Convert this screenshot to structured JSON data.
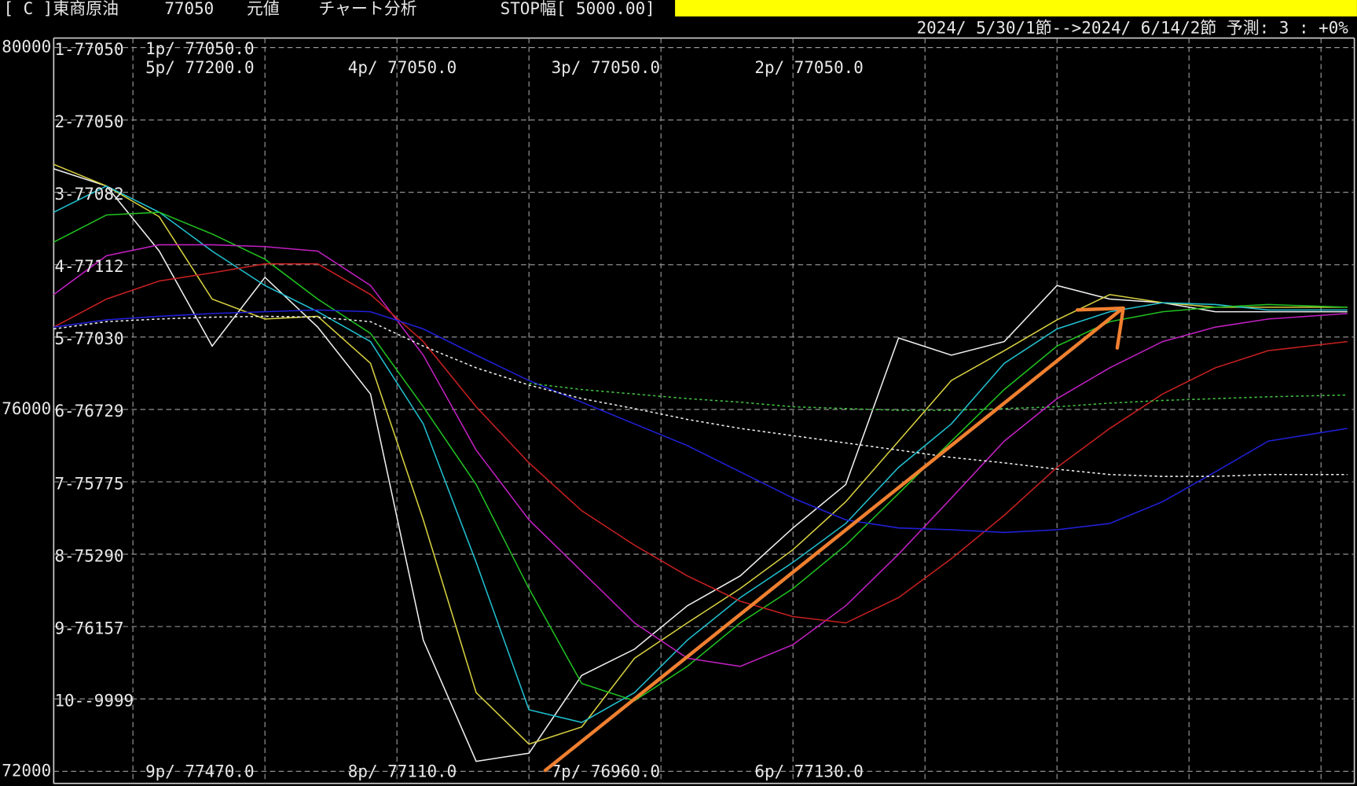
{
  "header": {
    "items": [
      "[ C ]東商原油",
      "77050",
      "元値",
      "チャート分析",
      "STOP幅[ 5000.00]"
    ],
    "period": "2024/ 5/30/1節-->2024/ 6/14/2節 予測: 3 : +0%"
  },
  "chart_data": {
    "type": "line",
    "x": [
      0,
      2,
      4,
      6,
      8,
      10,
      12,
      14,
      16,
      18,
      20,
      22,
      24,
      26,
      28,
      30,
      32,
      34,
      36,
      38,
      40,
      42,
      44,
      46,
      49
    ],
    "xlim": [
      0,
      49
    ],
    "xgrid": [
      3,
      8,
      13,
      18,
      23,
      28,
      33,
      38,
      43,
      48
    ],
    "ylim": [
      72000,
      80000
    ],
    "yticks": [
      80000,
      76000,
      72000
    ],
    "ygrid": [
      80000,
      79200,
      78400,
      77600,
      76800,
      76000,
      75200,
      74400,
      73600,
      72800,
      72000
    ],
    "grid": true,
    "series": [
      {
        "color": "#f0f0f0",
        "dash": false,
        "values": [
          78660,
          78470,
          77750,
          76700,
          77460,
          76910,
          76170,
          73450,
          72110,
          72200,
          73060,
          73350,
          73830,
          74160,
          74690,
          75170,
          76790,
          76600,
          76750,
          77370,
          77220,
          77180,
          77080,
          77080,
          77080
        ]
      },
      {
        "color": "#d8d040",
        "dash": false,
        "values": [
          78710,
          78470,
          78130,
          77220,
          77000,
          77030,
          76510,
          74780,
          72870,
          72300,
          72490,
          73250,
          73640,
          74020,
          74450,
          74980,
          75650,
          76320,
          76650,
          76990,
          77270,
          77180,
          77130,
          77130,
          77130
        ]
      },
      {
        "color": "#20c0d0",
        "dash": false,
        "values": [
          78180,
          78470,
          78180,
          77750,
          77370,
          77080,
          76750,
          75840,
          74310,
          72680,
          72540,
          72870,
          73450,
          73920,
          74310,
          74740,
          75360,
          75840,
          76510,
          76890,
          77080,
          77180,
          77160,
          77100,
          77100
        ]
      },
      {
        "color": "#20c020",
        "dash": false,
        "values": [
          77850,
          78150,
          78180,
          77940,
          77660,
          77220,
          76840,
          76030,
          75170,
          74020,
          72970,
          72780,
          73160,
          73640,
          74020,
          74500,
          75070,
          75650,
          76220,
          76700,
          76970,
          77080,
          77130,
          77160,
          77130
        ]
      },
      {
        "color": "#c020c0",
        "dash": false,
        "values": [
          77270,
          77700,
          77820,
          77820,
          77800,
          77750,
          77370,
          76600,
          75550,
          74780,
          74210,
          73640,
          73250,
          73160,
          73400,
          73830,
          74400,
          75020,
          75650,
          76120,
          76460,
          76750,
          76910,
          77000,
          77060
        ]
      },
      {
        "color": "#c82020",
        "dash": false,
        "values": [
          76910,
          77220,
          77420,
          77510,
          77610,
          77610,
          77270,
          76750,
          76030,
          75410,
          74880,
          74500,
          74160,
          73880,
          73710,
          73640,
          73920,
          74350,
          74830,
          75360,
          75790,
          76170,
          76460,
          76650,
          76750
        ]
      },
      {
        "color": "#2020d8",
        "dash": false,
        "values": [
          76910,
          76990,
          77030,
          77060,
          77080,
          77100,
          77080,
          76890,
          76600,
          76320,
          76080,
          75840,
          75600,
          75310,
          75020,
          74780,
          74690,
          74670,
          74640,
          74670,
          74740,
          74980,
          75310,
          75650,
          75790
        ]
      },
      {
        "color": "#f0f0f0",
        "dash": true,
        "values": [
          76890,
          76970,
          77000,
          77020,
          77030,
          77020,
          76970,
          76700,
          76460,
          76270,
          76120,
          76010,
          75890,
          75790,
          75710,
          75630,
          75550,
          75470,
          75410,
          75340,
          75280,
          75260,
          75260,
          75280,
          75280
        ]
      },
      {
        "color": "#40c040",
        "dash": true,
        "values": [
          null,
          null,
          null,
          null,
          null,
          null,
          null,
          null,
          null,
          76290,
          76220,
          76170,
          76120,
          76080,
          76030,
          76010,
          75990,
          75990,
          76010,
          76030,
          76070,
          76100,
          76120,
          76140,
          76160
        ]
      }
    ],
    "level_labels": [
      "1-77050",
      "2-77050",
      "3-77082",
      "4-77112",
      "5-77030",
      "6-76729",
      "7-75775",
      "8-75290",
      "9-76157",
      "10--9999"
    ],
    "annotations": [
      "1p/ 77050.0",
      "5p/ 77200.0",
      "4p/ 77050.0",
      "3p/ 77050.0",
      "2p/ 77050.0",
      "9p/ 77470.0",
      "8p/ 77110.0",
      "7p/ 76960.0",
      "6p/ 77130.0"
    ]
  }
}
